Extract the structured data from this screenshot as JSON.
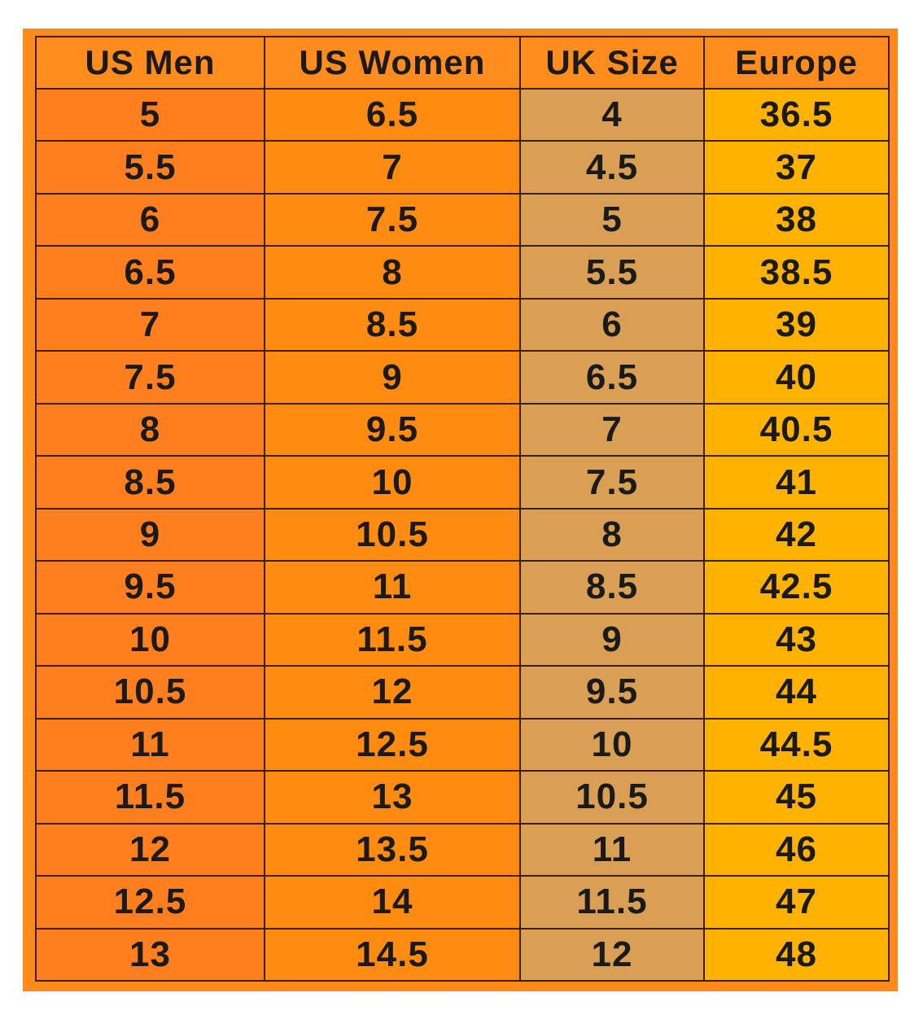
{
  "table": {
    "headers": [
      "US Men",
      "US Women",
      "UK Size",
      "Europe"
    ],
    "rows": [
      [
        "5",
        "6.5",
        "4",
        "36.5"
      ],
      [
        "5.5",
        "7",
        "4.5",
        "37"
      ],
      [
        "6",
        "7.5",
        "5",
        "38"
      ],
      [
        "6.5",
        "8",
        "5.5",
        "38.5"
      ],
      [
        "7",
        "8.5",
        "6",
        "39"
      ],
      [
        "7.5",
        "9",
        "6.5",
        "40"
      ],
      [
        "8",
        "9.5",
        "7",
        "40.5"
      ],
      [
        "8.5",
        "10",
        "7.5",
        "41"
      ],
      [
        "9",
        "10.5",
        "8",
        "42"
      ],
      [
        "9.5",
        "11",
        "8.5",
        "42.5"
      ],
      [
        "10",
        "11.5",
        "9",
        "43"
      ],
      [
        "10.5",
        "12",
        "9.5",
        "44"
      ],
      [
        "11",
        "12.5",
        "10",
        "44.5"
      ],
      [
        "11.5",
        "13",
        "10.5",
        "45"
      ],
      [
        "12",
        "13.5",
        "11",
        "46"
      ],
      [
        "12.5",
        "14",
        "11.5",
        "47"
      ],
      [
        "13",
        "14.5",
        "12",
        "48"
      ]
    ]
  },
  "colors": {
    "frame": "#ff8a1a",
    "us_men_column": "#ff7f1f",
    "us_women_column": "#ff8b10",
    "uk_column": "#d9a055",
    "europe_column": "#ffb300",
    "grid_line": "#3b1f08"
  }
}
